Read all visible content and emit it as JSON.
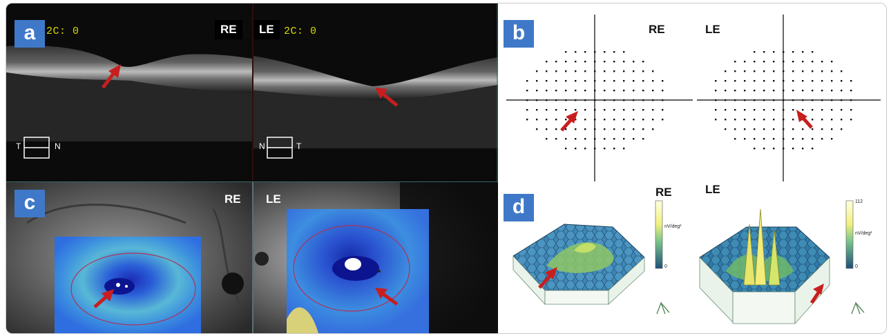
{
  "panels": {
    "a": {
      "label": "a",
      "re_label": "RE",
      "le_label": "LE",
      "re_overlay_text": "2C: 0",
      "le_overlay_text": "2C: 0",
      "re_orient_left": "T",
      "re_orient_right": "N",
      "le_orient_left": "N",
      "le_orient_right": "T"
    },
    "b": {
      "label": "b",
      "re_label": "RE",
      "le_label": "LE"
    },
    "c": {
      "label": "c",
      "re_label": "RE",
      "le_label": "LE"
    },
    "d": {
      "label": "d",
      "re_label": "RE",
      "le_label": "LE",
      "re_scale_unit": "nV/deg²",
      "re_scale_min": "0",
      "le_scale_max": "112",
      "le_scale_unit": "nV/deg²",
      "le_scale_min": "0"
    }
  },
  "colors": {
    "badge": "#3f78c8",
    "arrow": "#c81e1e",
    "oct_text": "#d8d800",
    "map_blue": "#2b5fd9"
  }
}
